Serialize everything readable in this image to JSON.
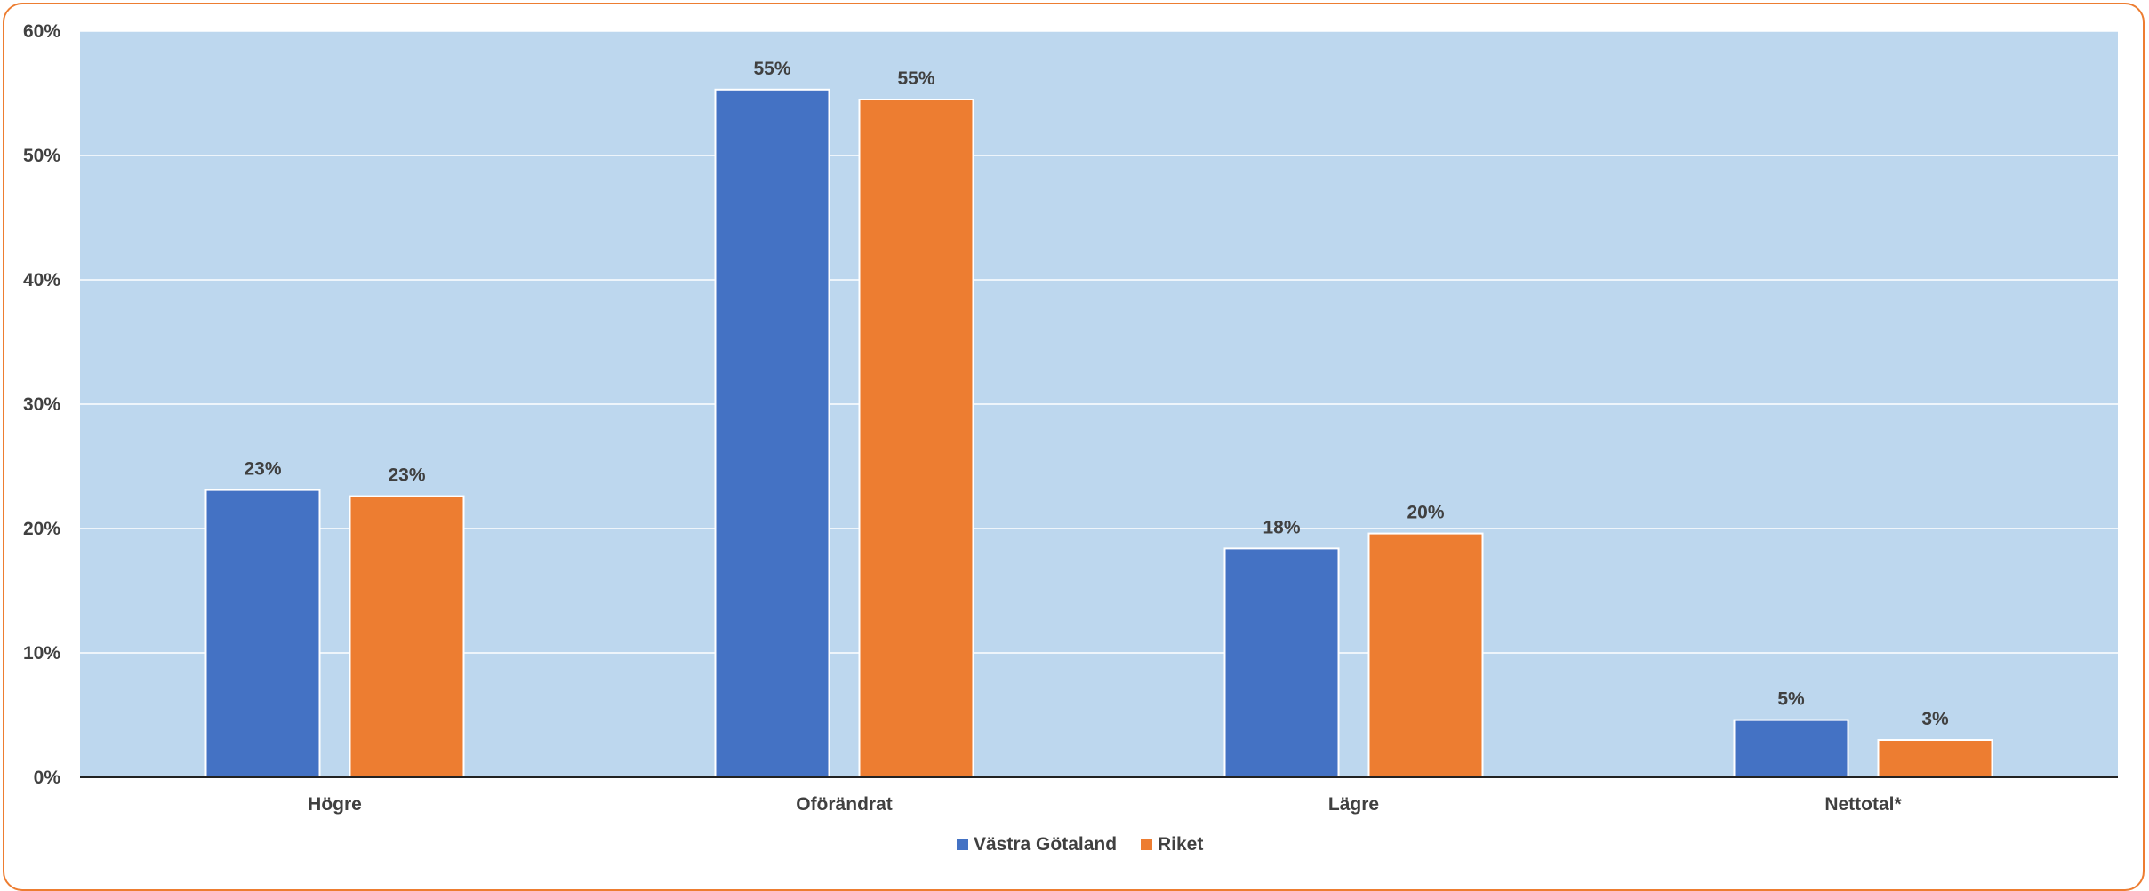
{
  "chart_data": {
    "type": "bar",
    "categories": [
      "Högre",
      "Oförändrat",
      "Lägre",
      "Nettotal*"
    ],
    "series": [
      {
        "name": "Västra Götaland",
        "color": "#4472C4",
        "values": [
          23.1,
          55.3,
          18.4,
          4.6
        ],
        "labels": [
          "23%",
          "55%",
          "18%",
          "5%"
        ]
      },
      {
        "name": "Riket",
        "color": "#ED7D31",
        "values": [
          22.6,
          54.5,
          19.6,
          3.0
        ],
        "labels": [
          "23%",
          "55%",
          "20%",
          "3%"
        ]
      }
    ],
    "ylim": [
      0,
      60
    ],
    "yticks": [
      0,
      10,
      20,
      30,
      40,
      50,
      60
    ],
    "ytick_labels": [
      "0%",
      "10%",
      "20%",
      "30%",
      "40%",
      "50%",
      "60%"
    ],
    "title": "",
    "xlabel": "",
    "ylabel": "",
    "grid": true,
    "plot_background": "#BDD7EE",
    "frame_color": "#ED7D31",
    "legend_position": "bottom"
  }
}
